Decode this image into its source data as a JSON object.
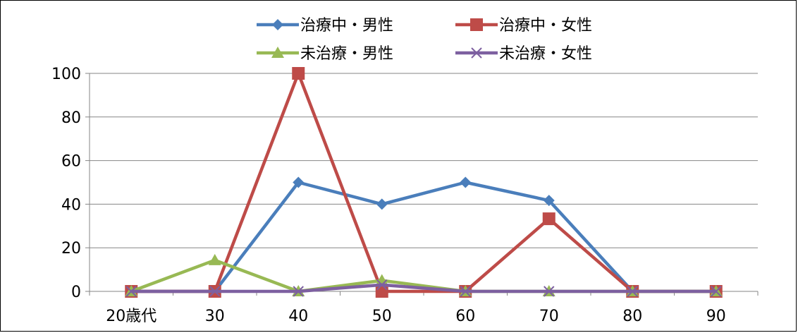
{
  "chart_data": {
    "type": "line",
    "categories": [
      "20歳代",
      "30",
      "40",
      "50",
      "60",
      "70",
      "80",
      "90"
    ],
    "ylim": [
      0,
      100
    ],
    "yticks": [
      "0",
      "20",
      "40",
      "60",
      "80",
      "100"
    ],
    "grid": true,
    "legend_position": "top",
    "series": [
      {
        "name": "治療中・男性",
        "color": "#4a7ebb",
        "marker": "diamond",
        "values": [
          0,
          0,
          50,
          40,
          50,
          41.7,
          0,
          0
        ]
      },
      {
        "name": "治療中・女性",
        "color": "#be4b48",
        "marker": "square",
        "values": [
          0,
          0,
          100,
          0,
          0,
          33.3,
          0,
          0
        ]
      },
      {
        "name": "未治療・男性",
        "color": "#98b954",
        "marker": "triangle",
        "values": [
          0,
          14.3,
          0,
          5,
          0,
          0,
          0,
          0
        ]
      },
      {
        "name": "未治療・女性",
        "color": "#7d60a0",
        "marker": "x",
        "values": [
          0,
          0,
          0,
          3,
          0,
          0,
          0,
          0
        ]
      }
    ]
  }
}
